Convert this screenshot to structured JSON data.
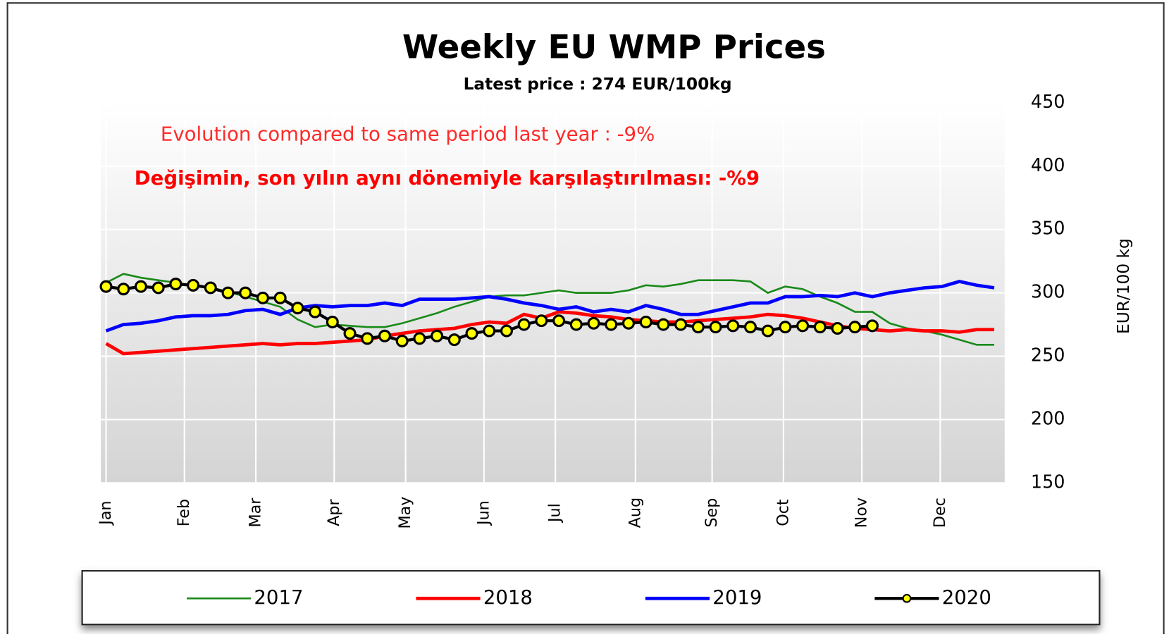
{
  "chart_data": {
    "type": "line",
    "title": "Weekly EU WMP Prices",
    "subtitle": "Latest price : 274 EUR/100kg",
    "annotations": [
      "Evolution compared to same period last year :  -9%",
      "Değişimin,  son  yılın aynı dönemiyle  karşılaştırılması: -%9"
    ],
    "ylabel": "EUR/100 kg",
    "x": [
      0,
      1,
      2,
      3,
      4,
      5,
      6,
      7,
      8,
      9,
      10,
      11,
      12,
      13,
      14,
      15,
      16,
      17,
      18,
      19,
      20,
      21,
      22,
      23,
      24,
      25,
      26,
      27,
      28,
      29,
      30,
      31,
      32,
      33,
      34,
      35,
      36,
      37,
      38,
      39,
      40,
      41,
      42,
      43,
      44,
      45,
      46,
      47,
      48,
      49,
      50,
      51
    ],
    "xlim": [
      -0.3,
      51.6
    ],
    "xticks": [
      {
        "value": 0,
        "label": "Jan"
      },
      {
        "value": 4.5,
        "label": "Feb"
      },
      {
        "value": 8.6,
        "label": "Mar"
      },
      {
        "value": 13.1,
        "label": "Apr"
      },
      {
        "value": 17.2,
        "label": "May"
      },
      {
        "value": 21.7,
        "label": "Jun"
      },
      {
        "value": 25.8,
        "label": "Jul"
      },
      {
        "value": 30.4,
        "label": "Aug"
      },
      {
        "value": 34.8,
        "label": "Sep"
      },
      {
        "value": 38.9,
        "label": "Oct"
      },
      {
        "value": 43.4,
        "label": "Nov"
      },
      {
        "value": 47.9,
        "label": "Dec"
      }
    ],
    "ylim": [
      150,
      450
    ],
    "yticks": [
      150,
      200,
      250,
      300,
      350,
      400,
      450
    ],
    "grid": true,
    "series": [
      {
        "name": "2017",
        "color": "#1a8a1a",
        "values": [
          308,
          315,
          312,
          310,
          308,
          306,
          304,
          301,
          297,
          293,
          289,
          279,
          273,
          275,
          274,
          273,
          273,
          276,
          280,
          284,
          289,
          293,
          297,
          298,
          298,
          300,
          302,
          300,
          300,
          300,
          302,
          306,
          305,
          307,
          310,
          310,
          310,
          309,
          300,
          305,
          303,
          297,
          292,
          285,
          285,
          276,
          272,
          270,
          267,
          263,
          259,
          259
        ]
      },
      {
        "name": "2018",
        "color": "#ff0000",
        "values": [
          260,
          252,
          253,
          254,
          255,
          256,
          257,
          258,
          259,
          260,
          259,
          260,
          260,
          261,
          262,
          263,
          266,
          268,
          270,
          271,
          272,
          275,
          277,
          276,
          283,
          280,
          285,
          284,
          282,
          281,
          279,
          278,
          277,
          277,
          278,
          279,
          280,
          281,
          283,
          282,
          280,
          277,
          274,
          272,
          271,
          270,
          271,
          270,
          270,
          269,
          271,
          271
        ]
      },
      {
        "name": "2019",
        "color": "#0000ff",
        "values": [
          270,
          275,
          276,
          278,
          281,
          282,
          282,
          283,
          286,
          287,
          283,
          288,
          290,
          289,
          290,
          290,
          292,
          290,
          295,
          295,
          295,
          296,
          297,
          295,
          292,
          290,
          287,
          289,
          285,
          287,
          285,
          290,
          287,
          283,
          283,
          286,
          289,
          292,
          292,
          297,
          297,
          298,
          297,
          300,
          297,
          300,
          302,
          304,
          305,
          309,
          306,
          304
        ]
      },
      {
        "name": "2020",
        "color": "#000000",
        "marker_color": "#ffff00",
        "values": [
          305,
          303,
          305,
          304,
          307,
          306,
          304,
          300,
          300,
          296,
          296,
          288,
          285,
          277,
          268,
          264,
          266,
          262,
          264,
          266,
          263,
          268,
          270,
          270,
          275,
          278,
          278,
          275,
          276,
          275,
          276,
          277,
          275,
          275,
          273,
          273,
          274,
          273,
          270,
          273,
          274,
          273,
          272,
          273,
          274,
          null,
          null,
          null,
          null,
          null,
          null,
          null
        ]
      }
    ]
  }
}
